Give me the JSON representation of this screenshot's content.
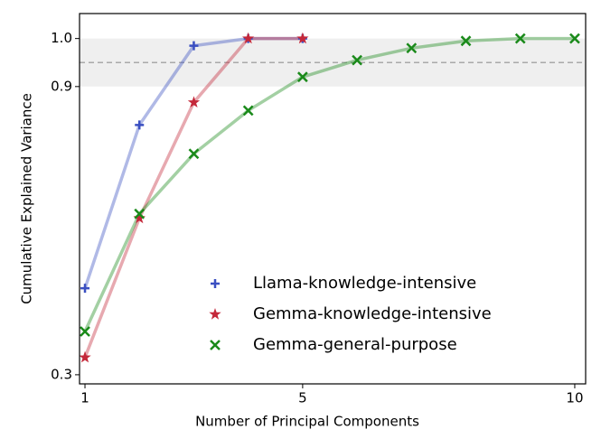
{
  "chart_data": {
    "type": "line",
    "x_label": "Number of Principal Components",
    "y_label": "Cumulative Explained Variance",
    "xlim": [
      0.9,
      10.2
    ],
    "xticks": [
      1,
      5,
      10
    ],
    "ylim": [
      0.281,
      1.052
    ],
    "yticks": [
      0.3,
      0.9,
      {
        "value": 1.0,
        "label": "1.0"
      }
    ],
    "band": [
      0.9,
      1.0
    ],
    "threshold": 0.95,
    "legend": "lower right",
    "series": [
      {
        "name": "Llama-knowledge-intensive",
        "color": "#3a4fc1",
        "marker": "plus",
        "x": [
          1,
          2,
          3,
          4,
          5
        ],
        "values": [
          0.48,
          0.82,
          0.985,
          1.0,
          1.0
        ]
      },
      {
        "name": "Gemma-knowledge-intensive",
        "color": "#c4283a",
        "marker": "star",
        "x": [
          1,
          2,
          3,
          4,
          5
        ],
        "values": [
          0.336,
          0.626,
          0.867,
          1.0,
          1.0
        ]
      },
      {
        "name": "Gemma-general-purpose",
        "color": "#1a8a1a",
        "marker": "x",
        "x": [
          1,
          2,
          3,
          4,
          5,
          6,
          7,
          8,
          9,
          10
        ],
        "values": [
          0.39,
          0.635,
          0.76,
          0.85,
          0.92,
          0.955,
          0.98,
          0.995,
          1.0,
          1.0
        ]
      }
    ]
  }
}
